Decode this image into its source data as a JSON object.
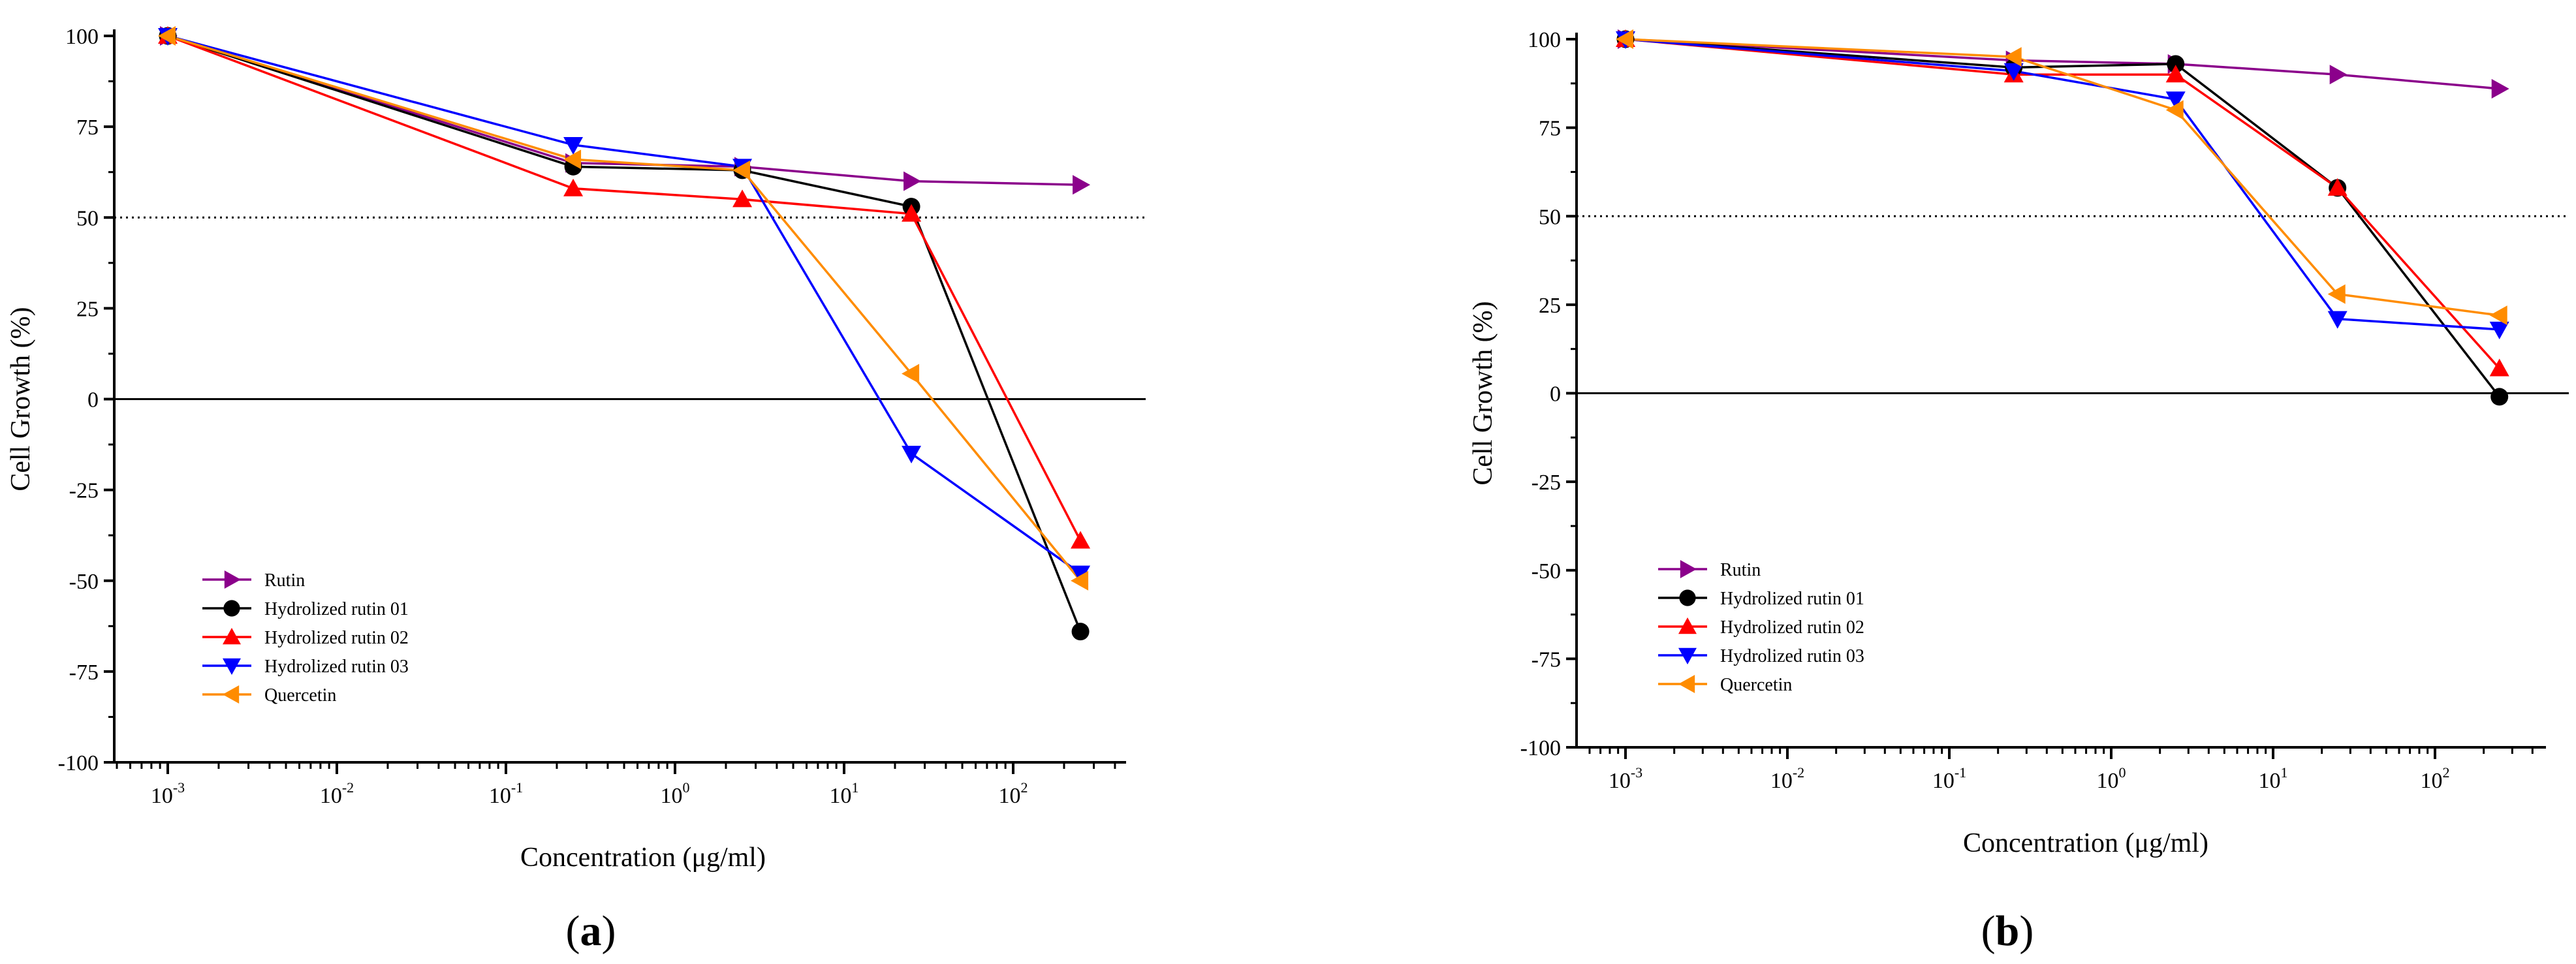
{
  "chart_data": [
    {
      "type": "line",
      "panel_label": "a",
      "xlabel": "Concentration (μg/ml)",
      "ylabel": "Cell Growth (%)",
      "xscale": "log",
      "xlim": [
        0.0005,
        600
      ],
      "ylim": [
        -100,
        100
      ],
      "x_tick_labels": [
        {
          "value": 0.001,
          "base": "10",
          "exp": "-3"
        },
        {
          "value": 0.01,
          "base": "10",
          "exp": "-2"
        },
        {
          "value": 0.1,
          "base": "10",
          "exp": "-1"
        },
        {
          "value": 1,
          "base": "10",
          "exp": "0"
        },
        {
          "value": 10,
          "base": "10",
          "exp": "1"
        },
        {
          "value": 100,
          "base": "10",
          "exp": "2"
        }
      ],
      "y_ticks": [
        100,
        75,
        50,
        25,
        0,
        -25,
        -50,
        -75,
        -100
      ],
      "y_tick_labels": [
        "100",
        "75",
        "50",
        "25",
        "0",
        "-25",
        "-50",
        "-75",
        "-100"
      ],
      "reference_lines": [
        {
          "y": 50,
          "style": "dotted"
        },
        {
          "y": 0,
          "style": "solid"
        }
      ],
      "legend_position": "lower-left",
      "series": [
        {
          "name": "Rutin",
          "color": "#8B008B",
          "marker": "triangle-right",
          "x": [
            0.001,
            0.25,
            2.5,
            25,
            250
          ],
          "y": [
            100,
            65,
            64,
            60,
            59
          ]
        },
        {
          "name": "Hydrolized rutin 01",
          "color": "#000000",
          "marker": "circle",
          "x": [
            0.001,
            0.25,
            2.5,
            25,
            250
          ],
          "y": [
            100,
            64,
            63,
            53,
            -64
          ]
        },
        {
          "name": "Hydrolized rutin 02",
          "color": "#FF0000",
          "marker": "triangle-up",
          "x": [
            0.001,
            0.25,
            2.5,
            25,
            250
          ],
          "y": [
            100,
            58,
            55,
            51,
            -39
          ]
        },
        {
          "name": "Hydrolized rutin 03",
          "color": "#0000FF",
          "marker": "triangle-down",
          "x": [
            0.001,
            0.25,
            2.5,
            25,
            250
          ],
          "y": [
            100,
            70,
            64,
            -15,
            -48
          ]
        },
        {
          "name": "Quercetin",
          "color": "#FF8C00",
          "marker": "triangle-left",
          "x": [
            0.001,
            0.25,
            2.5,
            25,
            250
          ],
          "y": [
            100,
            66,
            63,
            7,
            -50
          ]
        }
      ]
    },
    {
      "type": "line",
      "panel_label": "b",
      "xlabel": "Concentration (μg/ml)",
      "ylabel": "Cell Growth (%)",
      "xscale": "log",
      "xlim": [
        0.0005,
        600
      ],
      "ylim": [
        -100,
        100
      ],
      "x_tick_labels": [
        {
          "value": 0.001,
          "base": "10",
          "exp": "-3"
        },
        {
          "value": 0.01,
          "base": "10",
          "exp": "-2"
        },
        {
          "value": 0.1,
          "base": "10",
          "exp": "-1"
        },
        {
          "value": 1,
          "base": "10",
          "exp": "0"
        },
        {
          "value": 10,
          "base": "10",
          "exp": "1"
        },
        {
          "value": 100,
          "base": "10",
          "exp": "2"
        }
      ],
      "y_ticks": [
        100,
        75,
        50,
        25,
        0,
        -25,
        -50,
        -75,
        -100
      ],
      "y_tick_labels": [
        "100",
        "75",
        "50",
        "25",
        "0",
        "-25",
        "-50",
        "-75",
        "-100"
      ],
      "reference_lines": [
        {
          "y": 50,
          "style": "dotted"
        },
        {
          "y": 0,
          "style": "solid"
        }
      ],
      "legend_position": "lower-left",
      "series": [
        {
          "name": "Rutin",
          "color": "#8B008B",
          "marker": "triangle-right",
          "x": [
            0.001,
            0.25,
            2.5,
            25,
            250
          ],
          "y": [
            100,
            94,
            93,
            90,
            86
          ]
        },
        {
          "name": "Hydrolized rutin 01",
          "color": "#000000",
          "marker": "circle",
          "x": [
            0.001,
            0.25,
            2.5,
            25,
            250
          ],
          "y": [
            100,
            92,
            93,
            58,
            -1
          ]
        },
        {
          "name": "Hydrolized rutin 02",
          "color": "#FF0000",
          "marker": "triangle-up",
          "x": [
            0.001,
            0.25,
            2.5,
            25,
            250
          ],
          "y": [
            100,
            90,
            90,
            58,
            7
          ]
        },
        {
          "name": "Hydrolized rutin 03",
          "color": "#0000FF",
          "marker": "triangle-down",
          "x": [
            0.001,
            0.25,
            2.5,
            25,
            250
          ],
          "y": [
            100,
            91,
            83,
            21,
            18
          ]
        },
        {
          "name": "Quercetin",
          "color": "#FF8C00",
          "marker": "triangle-left",
          "x": [
            0.001,
            0.25,
            2.5,
            25,
            250
          ],
          "y": [
            100,
            95,
            80,
            28,
            22
          ]
        }
      ]
    }
  ]
}
